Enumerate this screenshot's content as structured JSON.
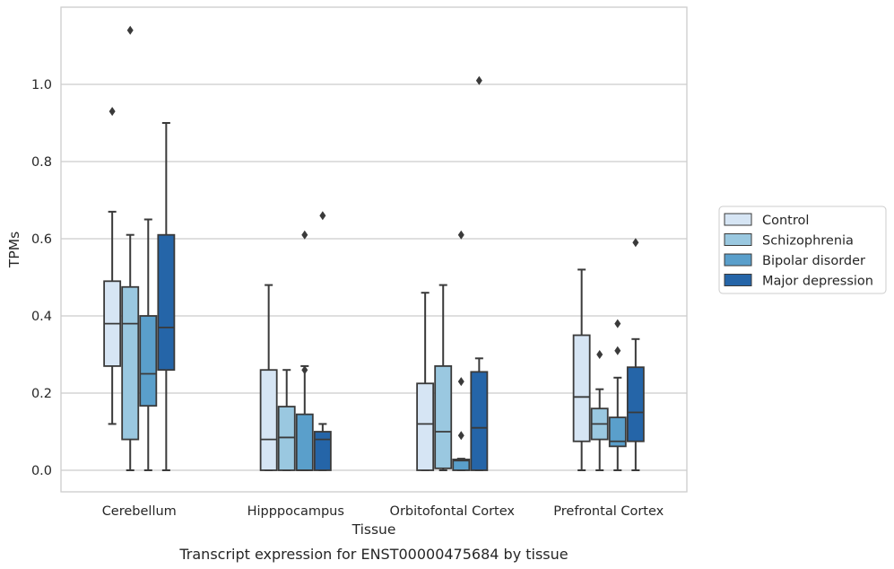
{
  "caption": "Transcript expression for ENST00000475684 by tissue",
  "colors": {
    "grid": "#cccccc",
    "frame": "#cccccc",
    "box_edge": "#3a3a3a",
    "series": [
      "#d6e5f4",
      "#9ac8e0",
      "#5a9fcb",
      "#2565a8"
    ]
  },
  "chart_data": {
    "type": "box",
    "title": "",
    "xlabel": "Tissue",
    "ylabel": "TPMs",
    "ylim": [
      -0.055,
      1.2
    ],
    "yticks": [
      0.0,
      0.2,
      0.4,
      0.6,
      0.8,
      1.0
    ],
    "ytick_labels": [
      "0.0",
      "0.2",
      "0.4",
      "0.6",
      "0.8",
      "1.0"
    ],
    "grid": "horizontal",
    "legend_position": "right, outside",
    "categories": [
      "Cerebellum",
      "Hipppocampus",
      "Orbitofontal Cortex",
      "Prefrontal Cortex"
    ],
    "series": [
      {
        "name": "Control",
        "boxes": [
          {
            "min": 0.12,
            "q1": 0.27,
            "median": 0.38,
            "q3": 0.49,
            "max": 0.67,
            "outliers": [
              0.93
            ]
          },
          {
            "min": 0.0,
            "q1": 0.0,
            "median": 0.08,
            "q3": 0.26,
            "max": 0.48,
            "outliers": []
          },
          {
            "min": 0.0,
            "q1": 0.0,
            "median": 0.12,
            "q3": 0.225,
            "max": 0.46,
            "outliers": []
          },
          {
            "min": 0.0,
            "q1": 0.075,
            "median": 0.19,
            "q3": 0.35,
            "max": 0.52,
            "outliers": []
          }
        ]
      },
      {
        "name": "Schizophrenia",
        "boxes": [
          {
            "min": 0.0,
            "q1": 0.08,
            "median": 0.38,
            "q3": 0.475,
            "max": 0.61,
            "outliers": [
              1.14
            ]
          },
          {
            "min": 0.0,
            "q1": 0.0,
            "median": 0.085,
            "q3": 0.165,
            "max": 0.26,
            "outliers": []
          },
          {
            "min": 0.0,
            "q1": 0.005,
            "median": 0.1,
            "q3": 0.27,
            "max": 0.48,
            "outliers": []
          },
          {
            "min": 0.0,
            "q1": 0.08,
            "median": 0.12,
            "q3": 0.16,
            "max": 0.21,
            "outliers": [
              0.3
            ]
          }
        ]
      },
      {
        "name": "Bipolar disorder",
        "boxes": [
          {
            "min": 0.0,
            "q1": 0.167,
            "median": 0.25,
            "q3": 0.4,
            "max": 0.65,
            "outliers": []
          },
          {
            "min": 0.0,
            "q1": 0.0,
            "median": 0.0,
            "q3": 0.145,
            "max": 0.27,
            "outliers": [
              0.61,
              0.26
            ]
          },
          {
            "min": 0.0,
            "q1": 0.0,
            "median": 0.025,
            "q3": 0.028,
            "max": 0.03,
            "outliers": [
              0.61,
              0.23,
              0.09
            ]
          },
          {
            "min": 0.0,
            "q1": 0.062,
            "median": 0.075,
            "q3": 0.137,
            "max": 0.24,
            "outliers": [
              0.38,
              0.31
            ]
          }
        ]
      },
      {
        "name": "Major depression",
        "boxes": [
          {
            "min": 0.0,
            "q1": 0.26,
            "median": 0.37,
            "q3": 0.61,
            "max": 0.9,
            "outliers": []
          },
          {
            "min": 0.0,
            "q1": 0.0,
            "median": 0.08,
            "q3": 0.1,
            "max": 0.12,
            "outliers": [
              0.66
            ]
          },
          {
            "min": 0.0,
            "q1": 0.0,
            "median": 0.11,
            "q3": 0.255,
            "max": 0.29,
            "outliers": [
              1.01
            ]
          },
          {
            "min": 0.0,
            "q1": 0.075,
            "median": 0.15,
            "q3": 0.267,
            "max": 0.34,
            "outliers": [
              0.59
            ]
          }
        ]
      }
    ]
  }
}
